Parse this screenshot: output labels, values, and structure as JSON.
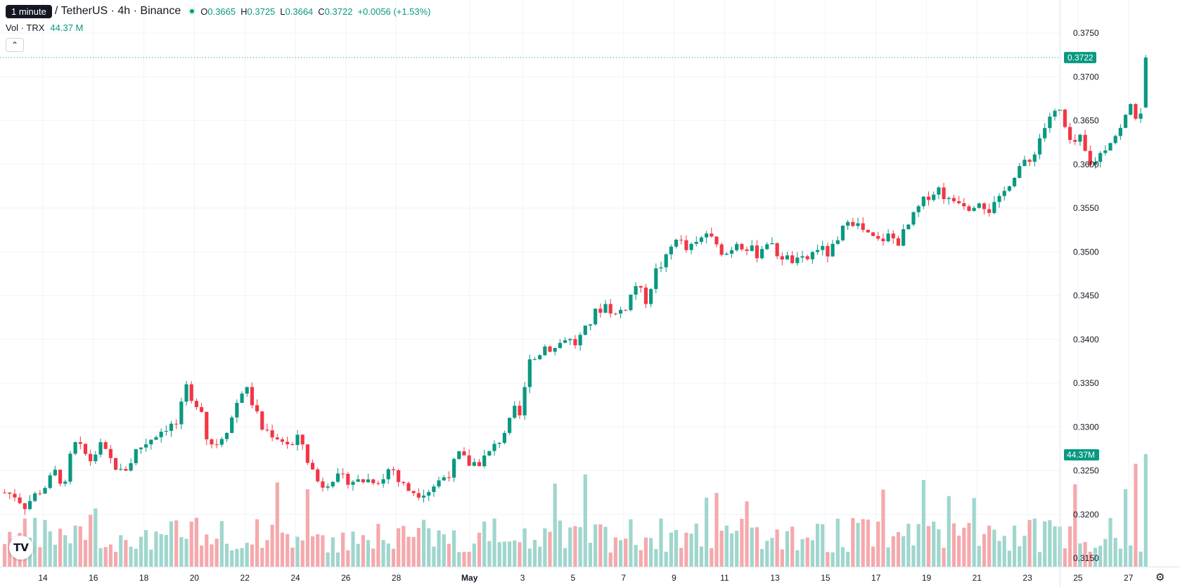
{
  "tooltip": "1 minute",
  "symbol": "/ TetherUS · 4h · Binance",
  "ohlc": {
    "o_label": "O",
    "o": "0.3665",
    "h_label": "H",
    "h": "0.3725",
    "l_label": "L",
    "l": "0.3664",
    "c_label": "C",
    "c": "0.3722",
    "change": "+0.0056 (+1.53%)"
  },
  "volume": {
    "label": "Vol · TRX",
    "value": "44.37 M"
  },
  "collapse_icon": "chevron-up-icon",
  "logo_text": "TV",
  "colors": {
    "up": "#089981",
    "down": "#f23645",
    "vol_up": "#9fd6cd",
    "vol_down": "#f5a9ac",
    "grid": "#f0f3fa"
  },
  "chart_data": {
    "type": "candlestick",
    "interval": "4h",
    "y_ticks": [
      "0.3750",
      "0.3700",
      "0.3650",
      "0.3600",
      "0.3550",
      "0.3500",
      "0.3450",
      "0.3400",
      "0.3350",
      "0.3300",
      "0.3250",
      "0.3200",
      "0.3150"
    ],
    "x_ticks": [
      "14",
      "16",
      "18",
      "20",
      "22",
      "24",
      "26",
      "28",
      "May",
      "3",
      "5",
      "7",
      "9",
      "11",
      "13",
      "15",
      "17",
      "19",
      "21",
      "23",
      "25",
      "27"
    ],
    "ylim": [
      0.314,
      0.377
    ],
    "last_price": "0.3722",
    "last_volume": "44.37M",
    "close_path": [
      [
        0,
        0.3225
      ],
      [
        0.4,
        0.3222
      ],
      [
        0.8,
        0.321
      ],
      [
        1.2,
        0.3222
      ],
      [
        1.6,
        0.3232
      ],
      [
        2.0,
        0.3248
      ],
      [
        2.4,
        0.3232
      ],
      [
        2.7,
        0.3282
      ],
      [
        3.0,
        0.3275
      ],
      [
        3.4,
        0.3262
      ],
      [
        3.8,
        0.3278
      ],
      [
        4.2,
        0.3262
      ],
      [
        4.6,
        0.3248
      ],
      [
        4.9,
        0.3255
      ],
      [
        5.2,
        0.3273
      ],
      [
        5.6,
        0.3282
      ],
      [
        6.0,
        0.3292
      ],
      [
        6.4,
        0.33
      ],
      [
        6.8,
        0.3303
      ],
      [
        7.2,
        0.3343
      ],
      [
        7.5,
        0.3318
      ],
      [
        7.7,
        0.3338
      ],
      [
        8.0,
        0.3288
      ],
      [
        8.3,
        0.3278
      ],
      [
        8.6,
        0.329
      ],
      [
        8.9,
        0.3302
      ],
      [
        9.2,
        0.3328
      ],
      [
        9.5,
        0.3348
      ],
      [
        9.8,
        0.3328
      ],
      [
        10.2,
        0.3298
      ],
      [
        10.6,
        0.3292
      ],
      [
        11.0,
        0.3285
      ],
      [
        11.4,
        0.3278
      ],
      [
        11.7,
        0.329
      ],
      [
        12.0,
        0.3262
      ],
      [
        12.5,
        0.3232
      ],
      [
        13.0,
        0.3242
      ],
      [
        13.5,
        0.324
      ],
      [
        14.0,
        0.3238
      ],
      [
        14.5,
        0.324
      ],
      [
        15.0,
        0.324
      ],
      [
        15.3,
        0.3258
      ],
      [
        15.6,
        0.3238
      ],
      [
        16.0,
        0.3228
      ],
      [
        16.4,
        0.3225
      ],
      [
        16.8,
        0.3228
      ],
      [
        17.2,
        0.3238
      ],
      [
        17.6,
        0.3248
      ],
      [
        18.0,
        0.3268
      ],
      [
        18.4,
        0.3258
      ],
      [
        18.8,
        0.326
      ],
      [
        19.2,
        0.327
      ],
      [
        19.6,
        0.3285
      ],
      [
        20.0,
        0.3305
      ],
      [
        20.3,
        0.3325
      ],
      [
        20.5,
        0.33
      ],
      [
        20.7,
        0.3385
      ],
      [
        21.0,
        0.3378
      ],
      [
        21.4,
        0.3392
      ],
      [
        21.8,
        0.339
      ],
      [
        22.2,
        0.3402
      ],
      [
        22.6,
        0.3395
      ],
      [
        23.0,
        0.341
      ],
      [
        23.4,
        0.343
      ],
      [
        23.8,
        0.344
      ],
      [
        24.2,
        0.3428
      ],
      [
        24.6,
        0.3438
      ],
      [
        25.0,
        0.3462
      ],
      [
        25.4,
        0.3445
      ],
      [
        25.8,
        0.3478
      ],
      [
        26.2,
        0.3492
      ],
      [
        26.6,
        0.3518
      ],
      [
        27.0,
        0.3502
      ],
      [
        27.4,
        0.3508
      ],
      [
        27.8,
        0.3522
      ],
      [
        28.2,
        0.3505
      ],
      [
        28.6,
        0.3498
      ],
      [
        29.0,
        0.3512
      ],
      [
        29.4,
        0.3505
      ],
      [
        29.8,
        0.3498
      ],
      [
        30.2,
        0.3512
      ],
      [
        30.6,
        0.3498
      ],
      [
        31.0,
        0.3492
      ],
      [
        31.4,
        0.3488
      ],
      [
        31.8,
        0.3492
      ],
      [
        32.2,
        0.3505
      ],
      [
        32.6,
        0.3498
      ],
      [
        33.0,
        0.351
      ],
      [
        33.4,
        0.354
      ],
      [
        33.8,
        0.353
      ],
      [
        34.2,
        0.3518
      ],
      [
        34.6,
        0.3512
      ],
      [
        35.0,
        0.3518
      ],
      [
        35.4,
        0.3512
      ],
      [
        35.8,
        0.353
      ],
      [
        36.2,
        0.355
      ],
      [
        36.6,
        0.3565
      ],
      [
        37.0,
        0.3572
      ],
      [
        37.4,
        0.3558
      ],
      [
        37.8,
        0.356
      ],
      [
        38.2,
        0.3552
      ],
      [
        38.6,
        0.356
      ],
      [
        39.0,
        0.3548
      ],
      [
        39.4,
        0.3558
      ],
      [
        39.8,
        0.358
      ],
      [
        40.2,
        0.3598
      ],
      [
        40.6,
        0.3602
      ],
      [
        41.0,
        0.363
      ],
      [
        41.4,
        0.3655
      ],
      [
        41.8,
        0.366
      ],
      [
        42.2,
        0.3622
      ],
      [
        42.6,
        0.3628
      ],
      [
        43.0,
        0.3598
      ],
      [
        43.4,
        0.3612
      ],
      [
        43.8,
        0.3628
      ],
      [
        44.2,
        0.364
      ],
      [
        44.6,
        0.3668
      ],
      [
        44.9,
        0.365
      ],
      [
        45.2,
        0.3665
      ]
    ],
    "last_candle": {
      "open": 0.3665,
      "high": 0.3725,
      "low": 0.3664,
      "close": 0.3722
    }
  }
}
